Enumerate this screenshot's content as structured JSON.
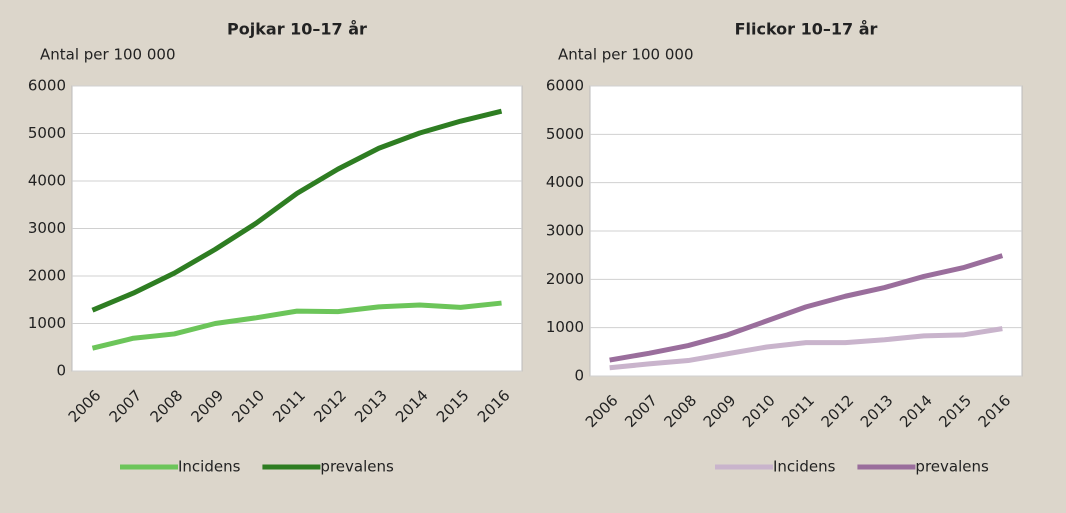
{
  "chart_data": [
    {
      "type": "line",
      "title": "Pojkar 10–17 år",
      "y_label": "Antal per 100 000",
      "categories": [
        "2006",
        "2007",
        "2008",
        "2009",
        "2010",
        "2011",
        "2012",
        "2013",
        "2014",
        "2015",
        "2016"
      ],
      "series": [
        {
          "name": "Incidens",
          "color": "#6cc55a",
          "values": [
            480,
            690,
            780,
            1000,
            1120,
            1260,
            1250,
            1350,
            1390,
            1340,
            1430
          ]
        },
        {
          "name": "prevalens",
          "color": "#2e7d22",
          "values": [
            1280,
            1640,
            2060,
            2560,
            3110,
            3740,
            4250,
            4690,
            5010,
            5260,
            5470
          ]
        }
      ],
      "ylim": [
        0,
        6000
      ],
      "yticks": [
        0,
        1000,
        2000,
        3000,
        4000,
        5000,
        6000
      ],
      "grid": true,
      "legend": "bottom"
    },
    {
      "type": "line",
      "title": "Flickor 10–17 år",
      "y_label": "Antal per 100 000",
      "categories": [
        "2006",
        "2007",
        "2008",
        "2009",
        "2010",
        "2011",
        "2012",
        "2013",
        "2014",
        "2015",
        "2016"
      ],
      "series": [
        {
          "name": "Incidens",
          "color": "#c9b4cc",
          "values": [
            170,
            250,
            320,
            460,
            600,
            690,
            690,
            750,
            830,
            850,
            980
          ]
        },
        {
          "name": "prevalens",
          "color": "#9a6e9c",
          "values": [
            330,
            470,
            630,
            850,
            1140,
            1430,
            1650,
            1830,
            2060,
            2240,
            2490
          ]
        }
      ],
      "ylim": [
        0,
        6000
      ],
      "yticks": [
        0,
        1000,
        2000,
        3000,
        4000,
        5000,
        6000
      ],
      "grid": true,
      "legend": "bottom"
    }
  ]
}
